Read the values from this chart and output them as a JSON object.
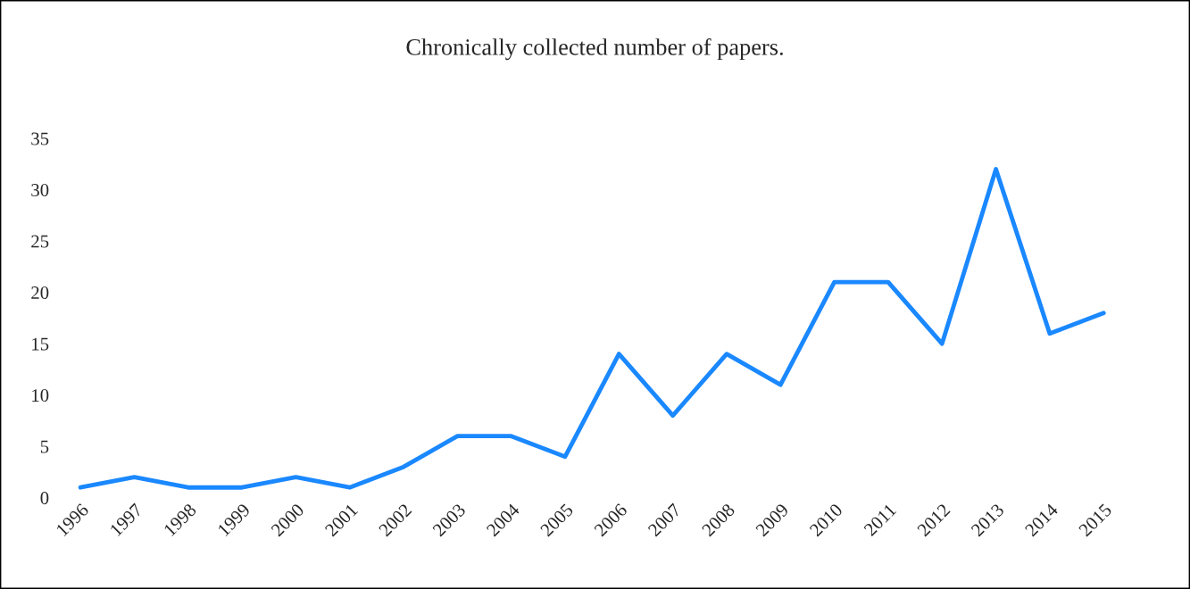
{
  "chart_data": {
    "type": "line",
    "title": "Chronically collected number of papers.",
    "categories": [
      "1996",
      "1997",
      "1998",
      "1999",
      "2000",
      "2001",
      "2002",
      "2003",
      "2004",
      "2005",
      "2006",
      "2007",
      "2008",
      "2009",
      "2010",
      "2011",
      "2012",
      "2013",
      "2014",
      "2015"
    ],
    "series": [
      {
        "color": "#1a88ff",
        "values": [
          1,
          2,
          1,
          1,
          2,
          1,
          3,
          6,
          6,
          4,
          14,
          8,
          14,
          11,
          21,
          21,
          15,
          32,
          16,
          18
        ]
      }
    ],
    "ylim": [
      0,
      35
    ],
    "yticks": [
      0,
      5,
      10,
      15,
      20,
      25,
      30,
      35
    ],
    "grid": false,
    "legend": false,
    "marker": "none",
    "line_style": "solid"
  }
}
